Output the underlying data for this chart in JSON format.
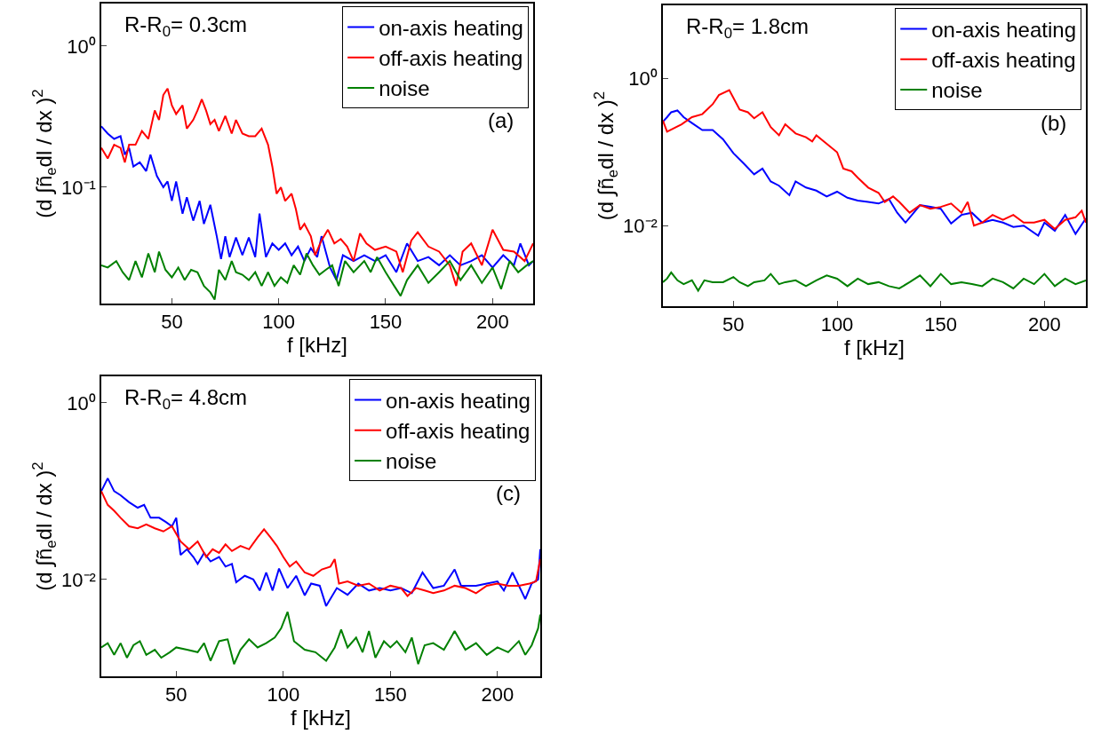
{
  "chart_data": [
    {
      "type": "line",
      "xlabel": "f [kHz]",
      "ylabel": "(d ∫ñ$_{e}$dl / dx )$^{2}$",
      "annotations": [
        "R-R$_{0}$= 0.3cm",
        "(a)"
      ],
      "log": "y",
      "legend": "top right",
      "xlim": [
        17,
        219
      ],
      "ylim": [
        0.015,
        2
      ],
      "xticks": [
        50,
        100,
        150,
        200
      ],
      "yticks": [
        {
          "value": 1,
          "label": "10⁰"
        },
        {
          "value": 0.1,
          "label": "10⁻¹"
        }
      ],
      "series": [
        {
          "name": "on-axis heating",
          "color": "#0000ff",
          "x": [
            17,
            20,
            23,
            26,
            28,
            30,
            32,
            35,
            38,
            40,
            43,
            46,
            48,
            50,
            52,
            55,
            57,
            60,
            63,
            65,
            68,
            71,
            73,
            75,
            77,
            80,
            83,
            86,
            89,
            91,
            94,
            97,
            100,
            103,
            106,
            109,
            112,
            115,
            118,
            120,
            124,
            127,
            130,
            135,
            140,
            145,
            150,
            155,
            160,
            165,
            170,
            175,
            180,
            185,
            190,
            195,
            200,
            205,
            210,
            213,
            217,
            219
          ],
          "values": [
            0.27,
            0.24,
            0.22,
            0.23,
            0.17,
            0.19,
            0.14,
            0.15,
            0.13,
            0.17,
            0.12,
            0.1,
            0.11,
            0.08,
            0.11,
            0.065,
            0.085,
            0.058,
            0.08,
            0.055,
            0.075,
            0.045,
            0.031,
            0.045,
            0.032,
            0.044,
            0.033,
            0.044,
            0.032,
            0.065,
            0.032,
            0.04,
            0.036,
            0.04,
            0.033,
            0.038,
            0.03,
            0.037,
            0.032,
            0.045,
            0.027,
            0.022,
            0.033,
            0.03,
            0.033,
            0.03,
            0.033,
            0.025,
            0.04,
            0.03,
            0.032,
            0.028,
            0.033,
            0.028,
            0.03,
            0.033,
            0.027,
            0.033,
            0.028,
            0.04,
            0.028,
            0.03
          ]
        },
        {
          "name": "off-axis heating",
          "color": "#ff0000",
          "x": [
            17,
            20,
            23,
            26,
            28,
            30,
            33,
            36,
            39,
            42,
            44,
            46,
            48,
            50,
            52,
            55,
            57,
            60,
            62,
            64,
            66,
            68,
            70,
            72,
            75,
            78,
            80,
            83,
            86,
            89,
            92,
            95,
            97,
            99,
            101,
            103,
            106,
            108,
            110,
            112,
            115,
            117,
            120,
            123,
            126,
            129,
            132,
            135,
            138,
            141,
            145,
            150,
            155,
            158,
            162,
            165,
            170,
            175,
            180,
            183,
            186,
            190,
            195,
            200,
            205,
            210,
            215,
            219
          ],
          "values": [
            0.19,
            0.16,
            0.2,
            0.19,
            0.15,
            0.2,
            0.2,
            0.25,
            0.22,
            0.35,
            0.3,
            0.45,
            0.5,
            0.38,
            0.33,
            0.38,
            0.26,
            0.3,
            0.35,
            0.42,
            0.35,
            0.28,
            0.3,
            0.25,
            0.32,
            0.24,
            0.3,
            0.24,
            0.23,
            0.23,
            0.26,
            0.2,
            0.14,
            0.09,
            0.1,
            0.08,
            0.09,
            0.07,
            0.05,
            0.055,
            0.045,
            0.033,
            0.042,
            0.05,
            0.04,
            0.043,
            0.038,
            0.03,
            0.047,
            0.04,
            0.036,
            0.038,
            0.035,
            0.025,
            0.042,
            0.048,
            0.038,
            0.035,
            0.028,
            0.02,
            0.035,
            0.04,
            0.028,
            0.05,
            0.036,
            0.035,
            0.03,
            0.04
          ]
        },
        {
          "name": "noise",
          "color": "#008000",
          "x": [
            17,
            20,
            24,
            27,
            30,
            33,
            36,
            39,
            42,
            44,
            47,
            50,
            53,
            56,
            59,
            62,
            65,
            68,
            70,
            72,
            75,
            78,
            80,
            83,
            86,
            89,
            92,
            95,
            98,
            101,
            104,
            107,
            110,
            113,
            116,
            119,
            122,
            125,
            128,
            131,
            135,
            140,
            143,
            146,
            150,
            154,
            157,
            160,
            165,
            170,
            175,
            180,
            185,
            190,
            195,
            200,
            204,
            208,
            212,
            216,
            219
          ],
          "values": [
            0.028,
            0.027,
            0.03,
            0.025,
            0.022,
            0.03,
            0.023,
            0.034,
            0.025,
            0.035,
            0.026,
            0.023,
            0.027,
            0.022,
            0.026,
            0.025,
            0.02,
            0.018,
            0.016,
            0.026,
            0.022,
            0.03,
            0.025,
            0.024,
            0.022,
            0.025,
            0.02,
            0.025,
            0.02,
            0.023,
            0.021,
            0.028,
            0.024,
            0.034,
            0.028,
            0.024,
            0.026,
            0.028,
            0.02,
            0.03,
            0.025,
            0.03,
            0.025,
            0.032,
            0.025,
            0.02,
            0.017,
            0.022,
            0.028,
            0.021,
            0.025,
            0.03,
            0.022,
            0.028,
            0.021,
            0.027,
            0.019,
            0.03,
            0.025,
            0.028,
            0.03
          ]
        }
      ]
    },
    {
      "type": "line",
      "xlabel": "f [kHz]",
      "ylabel": "(d ∫ñ$_{e}$dl / dx )$^{2}$",
      "annotations": [
        "R-R$_{0}$= 1.8cm",
        "(b)"
      ],
      "log": "y",
      "legend": "top right",
      "xlim": [
        16,
        220
      ],
      "ylim": [
        0.0008,
        10
      ],
      "xticks": [
        50,
        100,
        150,
        200
      ],
      "yticks": [
        {
          "value": 1,
          "label": "10⁰"
        },
        {
          "value": 0.01,
          "label": "10⁻²"
        }
      ],
      "series": [
        {
          "name": "on-axis heating",
          "color": "#0000ff",
          "x": [
            16,
            18,
            20,
            23,
            26,
            30,
            35,
            40,
            45,
            50,
            55,
            60,
            64,
            68,
            72,
            77,
            80,
            85,
            90,
            95,
            100,
            105,
            110,
            115,
            120,
            125,
            129,
            133,
            137,
            140,
            145,
            150,
            155,
            160,
            165,
            170,
            175,
            180,
            185,
            190,
            197,
            200,
            205,
            210,
            215,
            220
          ],
          "values": [
            0.26,
            0.3,
            0.35,
            0.37,
            0.3,
            0.25,
            0.2,
            0.2,
            0.15,
            0.097,
            0.07,
            0.05,
            0.06,
            0.04,
            0.035,
            0.026,
            0.04,
            0.033,
            0.03,
            0.025,
            0.029,
            0.024,
            0.022,
            0.021,
            0.02,
            0.023,
            0.015,
            0.011,
            0.015,
            0.019,
            0.018,
            0.017,
            0.0107,
            0.014,
            0.015,
            0.011,
            0.012,
            0.011,
            0.0096,
            0.01,
            0.0073,
            0.011,
            0.0085,
            0.014,
            0.0077,
            0.0126
          ]
        },
        {
          "name": "off-axis heating",
          "color": "#ff0000",
          "x": [
            16,
            18,
            25,
            30,
            35,
            40,
            43,
            48,
            50,
            53,
            57,
            60,
            64,
            68,
            72,
            75,
            80,
            85,
            88,
            90,
            95,
            100,
            103,
            107,
            110,
            115,
            120,
            123,
            127,
            130,
            135,
            140,
            145,
            150,
            155,
            160,
            163,
            166,
            170,
            175,
            180,
            185,
            190,
            195,
            200,
            205,
            210,
            215,
            218,
            220
          ],
          "values": [
            0.27,
            0.19,
            0.24,
            0.3,
            0.33,
            0.45,
            0.6,
            0.7,
            0.55,
            0.38,
            0.35,
            0.29,
            0.35,
            0.22,
            0.17,
            0.24,
            0.18,
            0.16,
            0.14,
            0.17,
            0.13,
            0.1,
            0.06,
            0.055,
            0.045,
            0.033,
            0.028,
            0.021,
            0.025,
            0.021,
            0.015,
            0.019,
            0.017,
            0.018,
            0.02,
            0.015,
            0.021,
            0.01,
            0.011,
            0.014,
            0.012,
            0.014,
            0.011,
            0.011,
            0.012,
            0.009,
            0.012,
            0.013,
            0.016,
            0.011
          ]
        },
        {
          "name": "noise",
          "color": "#008000",
          "x": [
            16,
            18,
            20,
            23,
            26,
            30,
            33,
            36,
            40,
            45,
            50,
            53,
            57,
            60,
            65,
            68,
            72,
            75,
            80,
            85,
            90,
            95,
            100,
            105,
            110,
            115,
            120,
            125,
            130,
            135,
            140,
            145,
            150,
            155,
            160,
            165,
            170,
            175,
            180,
            185,
            190,
            195,
            200,
            205,
            210,
            215,
            220
          ],
          "values": [
            0.0017,
            0.0019,
            0.0023,
            0.0018,
            0.0016,
            0.0018,
            0.0013,
            0.0018,
            0.0017,
            0.0017,
            0.002,
            0.0017,
            0.0015,
            0.0017,
            0.0018,
            0.0022,
            0.0016,
            0.0017,
            0.0018,
            0.0015,
            0.0018,
            0.0021,
            0.0019,
            0.0015,
            0.0019,
            0.0016,
            0.0017,
            0.0015,
            0.0014,
            0.0017,
            0.0021,
            0.0015,
            0.0022,
            0.0016,
            0.0017,
            0.0016,
            0.0015,
            0.0019,
            0.0017,
            0.0014,
            0.0019,
            0.0016,
            0.0022,
            0.0015,
            0.0019,
            0.0016,
            0.0018
          ]
        }
      ]
    },
    {
      "type": "line",
      "xlabel": "f [kHz]",
      "ylabel": "(d ∫ñ$_{e}$dl / dx )$^{2}$",
      "annotations": [
        "R-R$_{0}$= 4.8cm",
        "(c)"
      ],
      "log": "y",
      "legend": "top right",
      "xlim": [
        15,
        220
      ],
      "ylim": [
        0.0008,
        2
      ],
      "xticks": [
        50,
        100,
        150,
        200
      ],
      "yticks": [
        {
          "value": 1,
          "label": "10⁰"
        },
        {
          "value": 0.01,
          "label": "10⁻²"
        }
      ],
      "series": [
        {
          "name": "on-axis heating",
          "color": "#0000ff",
          "x": [
            15,
            18,
            21,
            24,
            28,
            32,
            35,
            38,
            42,
            45,
            48,
            50,
            52,
            55,
            58,
            60,
            63,
            66,
            70,
            73,
            76,
            78,
            82,
            86,
            89,
            92,
            95,
            98,
            102,
            106,
            110,
            113,
            117,
            120,
            125,
            130,
            135,
            140,
            145,
            150,
            155,
            160,
            165,
            170,
            175,
            180,
            183,
            190,
            195,
            200,
            203,
            207,
            210,
            213,
            216,
            219,
            220
          ],
          "values": [
            0.1,
            0.14,
            0.1,
            0.09,
            0.075,
            0.065,
            0.07,
            0.05,
            0.05,
            0.045,
            0.04,
            0.05,
            0.019,
            0.022,
            0.018,
            0.015,
            0.02,
            0.016,
            0.018,
            0.014,
            0.015,
            0.0093,
            0.011,
            0.01,
            0.0075,
            0.012,
            0.0075,
            0.0133,
            0.008,
            0.011,
            0.0066,
            0.009,
            0.0085,
            0.005,
            0.008,
            0.0067,
            0.009,
            0.0075,
            0.008,
            0.0075,
            0.008,
            0.007,
            0.012,
            0.008,
            0.0085,
            0.013,
            0.0085,
            0.0085,
            0.009,
            0.0095,
            0.0075,
            0.012,
            0.0085,
            0.006,
            0.009,
            0.01,
            0.022
          ]
        },
        {
          "name": "off-axis heating",
          "color": "#ff0000",
          "x": [
            15,
            18,
            21,
            24,
            28,
            32,
            36,
            40,
            44,
            48,
            52,
            56,
            60,
            64,
            67,
            70,
            73,
            76,
            80,
            84,
            88,
            91,
            94,
            97,
            100,
            103,
            106,
            110,
            114,
            118,
            122,
            124,
            126,
            130,
            135,
            140,
            145,
            150,
            155,
            158,
            162,
            166,
            170,
            175,
            180,
            185,
            190,
            195,
            200,
            205,
            210,
            215,
            218,
            220
          ],
          "values": [
            0.1,
            0.07,
            0.06,
            0.05,
            0.04,
            0.038,
            0.042,
            0.038,
            0.035,
            0.04,
            0.027,
            0.022,
            0.027,
            0.018,
            0.022,
            0.02,
            0.025,
            0.021,
            0.024,
            0.022,
            0.03,
            0.037,
            0.03,
            0.024,
            0.018,
            0.014,
            0.016,
            0.012,
            0.011,
            0.013,
            0.014,
            0.017,
            0.009,
            0.0095,
            0.0085,
            0.009,
            0.0075,
            0.0085,
            0.008,
            0.0065,
            0.008,
            0.0075,
            0.007,
            0.0075,
            0.0085,
            0.008,
            0.007,
            0.0085,
            0.009,
            0.0085,
            0.0085,
            0.009,
            0.0095,
            0.017
          ]
        },
        {
          "name": "noise",
          "color": "#008000",
          "x": [
            15,
            18,
            21,
            24,
            27,
            30,
            33,
            36,
            40,
            43,
            47,
            50,
            55,
            60,
            63,
            66,
            70,
            74,
            77,
            80,
            84,
            88,
            92,
            96,
            99,
            102,
            105,
            110,
            115,
            120,
            124,
            127,
            130,
            134,
            137,
            140,
            143,
            147,
            150,
            153,
            157,
            160,
            163,
            166,
            170,
            175,
            180,
            185,
            190,
            195,
            200,
            205,
            210,
            213,
            216,
            219,
            220
          ],
          "values": [
            0.0017,
            0.0019,
            0.0014,
            0.0019,
            0.0013,
            0.0018,
            0.002,
            0.0014,
            0.0016,
            0.0013,
            0.0015,
            0.0017,
            0.0016,
            0.0015,
            0.0019,
            0.0012,
            0.002,
            0.0021,
            0.0011,
            0.0016,
            0.0021,
            0.0017,
            0.0019,
            0.0022,
            0.0028,
            0.0043,
            0.002,
            0.0016,
            0.0015,
            0.0012,
            0.0017,
            0.0027,
            0.0017,
            0.0022,
            0.0015,
            0.0026,
            0.0013,
            0.002,
            0.0017,
            0.002,
            0.0015,
            0.0022,
            0.0011,
            0.0018,
            0.0019,
            0.0016,
            0.0026,
            0.0016,
            0.0019,
            0.0014,
            0.0017,
            0.0015,
            0.002,
            0.0014,
            0.0018,
            0.0028,
            0.004
          ]
        }
      ]
    }
  ]
}
